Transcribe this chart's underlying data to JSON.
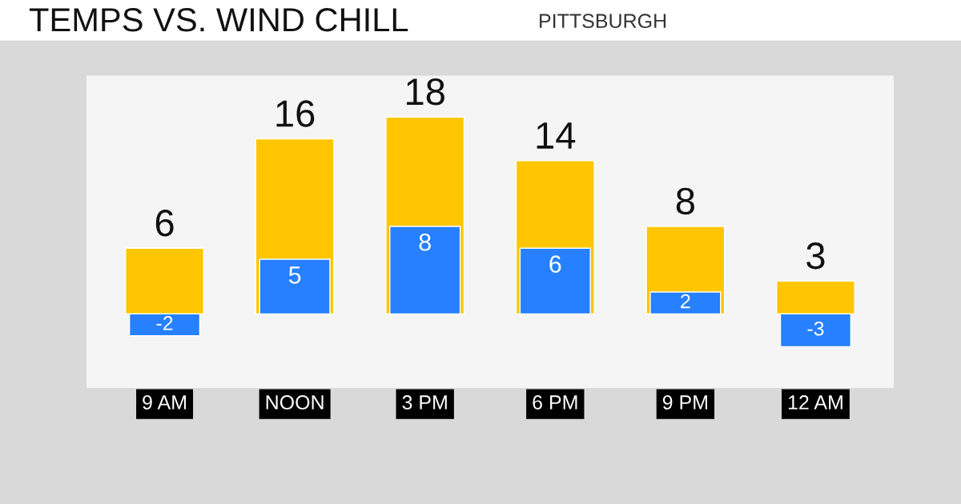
{
  "chart_data": {
    "type": "bar",
    "title": "TEMPS VS. WIND CHILL",
    "subtitle": "PITTSBURGH",
    "categories": [
      "9 AM",
      "NOON",
      "3 PM",
      "6 PM",
      "9 PM",
      "12 AM"
    ],
    "series": [
      {
        "color": "#ffc600",
        "values": [
          6,
          16,
          18,
          14,
          8,
          3
        ]
      },
      {
        "color": "#2680ff",
        "values": [
          -2,
          5,
          8,
          6,
          2,
          -3
        ]
      }
    ],
    "tick_labels": "x",
    "data_labels": true,
    "grid": false,
    "legend": false
  }
}
